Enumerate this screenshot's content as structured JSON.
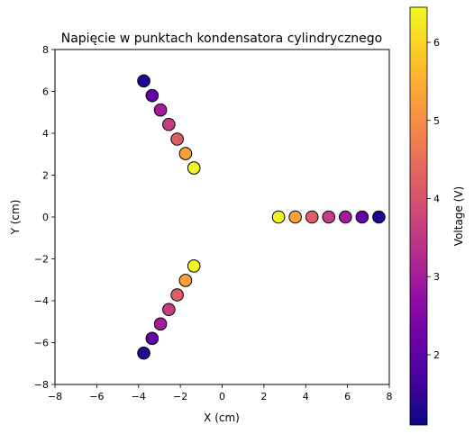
{
  "chart_data": {
    "type": "scatter",
    "title": "Napięcie w punktach kondensatora cylindrycznego",
    "xlabel": "X (cm)",
    "ylabel": "Y (cm)",
    "xlim": [
      -8,
      8
    ],
    "ylim": [
      -8,
      8
    ],
    "xticks": [
      "−8",
      "−6",
      "−4",
      "−2",
      "0",
      "2",
      "4",
      "6",
      "8"
    ],
    "yticks": [
      "−8",
      "−6",
      "−4",
      "−2",
      "0",
      "2",
      "4",
      "6",
      "8"
    ],
    "xtick_values": [
      -8,
      -6,
      -4,
      -2,
      0,
      2,
      4,
      6,
      8
    ],
    "ytick_values": [
      -8,
      -6,
      -4,
      -2,
      0,
      2,
      4,
      6,
      8
    ],
    "grid": false,
    "colormap": "plasma",
    "colorbar": {
      "label": "Voltage (V)",
      "range": [
        1.1,
        6.45
      ],
      "ticks": [
        "2",
        "3",
        "4",
        "5",
        "6"
      ],
      "tick_values": [
        2,
        3,
        4,
        5,
        6
      ]
    },
    "points": [
      {
        "x": 2.7,
        "y": 0.0,
        "v": 6.4
      },
      {
        "x": 3.5,
        "y": 0.0,
        "v": 5.3
      },
      {
        "x": 4.3,
        "y": 0.0,
        "v": 4.2
      },
      {
        "x": 5.1,
        "y": 0.0,
        "v": 3.6
      },
      {
        "x": 5.9,
        "y": 0.0,
        "v": 3.0
      },
      {
        "x": 6.7,
        "y": 0.0,
        "v": 2.1
      },
      {
        "x": 7.5,
        "y": 0.0,
        "v": 1.3
      },
      {
        "x": -1.35,
        "y": 2.34,
        "v": 6.4
      },
      {
        "x": -1.75,
        "y": 3.03,
        "v": 5.3
      },
      {
        "x": -2.15,
        "y": 3.72,
        "v": 4.2
      },
      {
        "x": -2.55,
        "y": 4.42,
        "v": 3.6
      },
      {
        "x": -2.95,
        "y": 5.11,
        "v": 3.0
      },
      {
        "x": -3.35,
        "y": 5.8,
        "v": 2.1
      },
      {
        "x": -3.75,
        "y": 6.5,
        "v": 1.3
      },
      {
        "x": -1.35,
        "y": -2.34,
        "v": 6.4
      },
      {
        "x": -1.75,
        "y": -3.03,
        "v": 5.3
      },
      {
        "x": -2.15,
        "y": -3.72,
        "v": 4.2
      },
      {
        "x": -2.55,
        "y": -4.42,
        "v": 3.6
      },
      {
        "x": -2.95,
        "y": -5.11,
        "v": 3.0
      },
      {
        "x": -3.35,
        "y": -5.8,
        "v": 2.1
      },
      {
        "x": -3.75,
        "y": -6.5,
        "v": 1.3
      }
    ]
  }
}
